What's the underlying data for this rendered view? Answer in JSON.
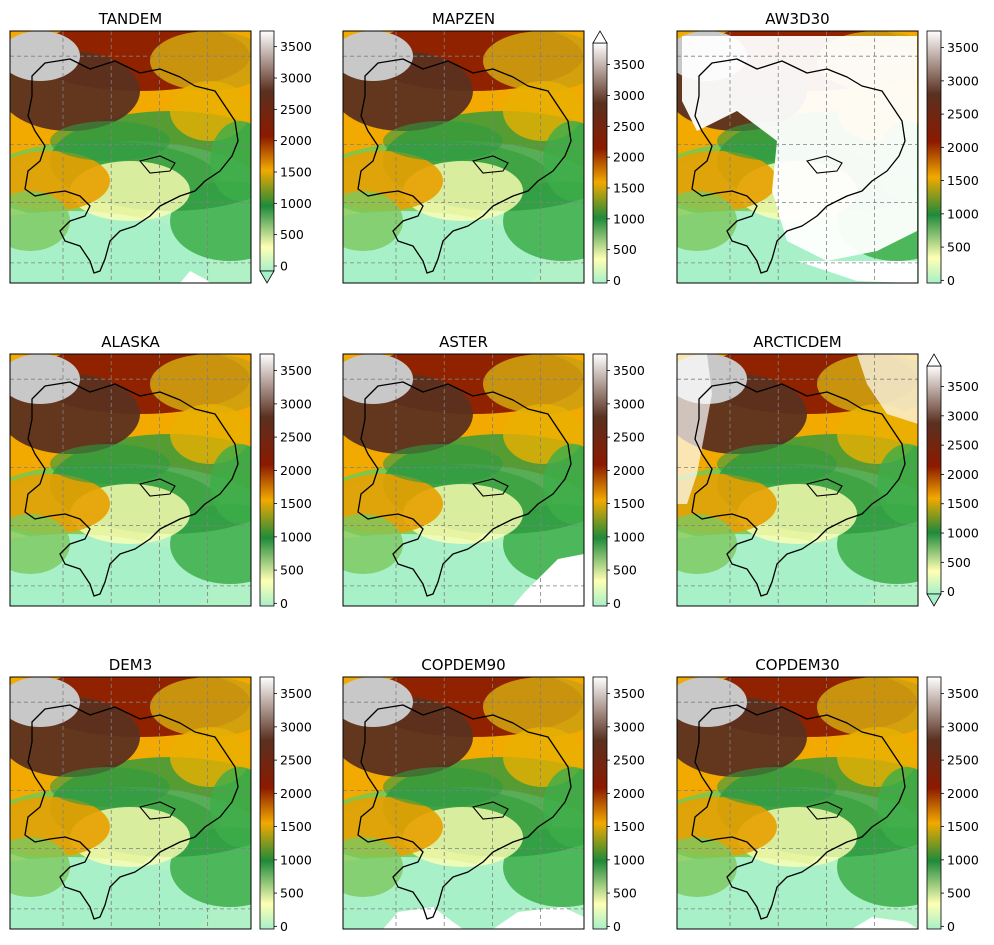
{
  "colors": {
    "colormap": [
      "#a8f0c8",
      "#ffffb4",
      "#1f8a3a",
      "#f2a900",
      "#8c1a00",
      "#5a3020",
      "#ffffff"
    ],
    "nodata": "#ffffff",
    "outline": "#000000",
    "grid": "#808080"
  },
  "chart_data": [
    {
      "type": "heatmap",
      "title": "TANDEM",
      "colorbar": {
        "ticks": [
          0,
          500,
          1000,
          1500,
          2000,
          2500,
          3000,
          3500
        ],
        "vmin": -80,
        "vmax": 3750,
        "extend": "min"
      },
      "nodata": "minor"
    },
    {
      "type": "heatmap",
      "title": "MAPZEN",
      "colorbar": {
        "ticks": [
          0,
          500,
          1000,
          1500,
          2000,
          2500,
          3000,
          3500
        ],
        "vmin": -40,
        "vmax": 3850,
        "extend": "max"
      },
      "nodata": "none"
    },
    {
      "type": "heatmap",
      "title": "AW3D30",
      "colorbar": {
        "ticks": [
          0,
          500,
          1000,
          1500,
          2000,
          2500,
          3000,
          3500
        ],
        "vmin": -40,
        "vmax": 3750,
        "extend": "neither"
      },
      "nodata": "large"
    },
    {
      "type": "heatmap",
      "title": "ALASKA",
      "colorbar": {
        "ticks": [
          0,
          500,
          1000,
          1500,
          2000,
          2500,
          3000,
          3500
        ],
        "vmin": -40,
        "vmax": 3750,
        "extend": "neither"
      },
      "nodata": "none"
    },
    {
      "type": "heatmap",
      "title": "ASTER",
      "colorbar": {
        "ticks": [
          0,
          500,
          1000,
          1500,
          2000,
          2500,
          3000,
          3500
        ],
        "vmin": -40,
        "vmax": 3750,
        "extend": "neither"
      },
      "nodata": "lower-right"
    },
    {
      "type": "heatmap",
      "title": "ARCTICDEM",
      "colorbar": {
        "ticks": [
          0,
          500,
          1000,
          1500,
          2000,
          2500,
          3000,
          3500
        ],
        "vmin": -40,
        "vmax": 3850,
        "extend": "both"
      },
      "nodata": "top-left"
    },
    {
      "type": "heatmap",
      "title": "DEM3",
      "colorbar": {
        "ticks": [
          0,
          500,
          1000,
          1500,
          2000,
          2500,
          3000,
          3500
        ],
        "vmin": -40,
        "vmax": 3750,
        "extend": "neither"
      },
      "nodata": "none"
    },
    {
      "type": "heatmap",
      "title": "COPDEM90",
      "colorbar": {
        "ticks": [
          0,
          500,
          1000,
          1500,
          2000,
          2500,
          3000,
          3500
        ],
        "vmin": -40,
        "vmax": 3750,
        "extend": "neither"
      },
      "nodata": "bottom"
    },
    {
      "type": "heatmap",
      "title": "COPDEM30",
      "colorbar": {
        "ticks": [
          0,
          500,
          1000,
          1500,
          2000,
          2500,
          3000,
          3500
        ],
        "vmin": -40,
        "vmax": 3750,
        "extend": "neither"
      },
      "nodata": "bottom-small"
    }
  ]
}
